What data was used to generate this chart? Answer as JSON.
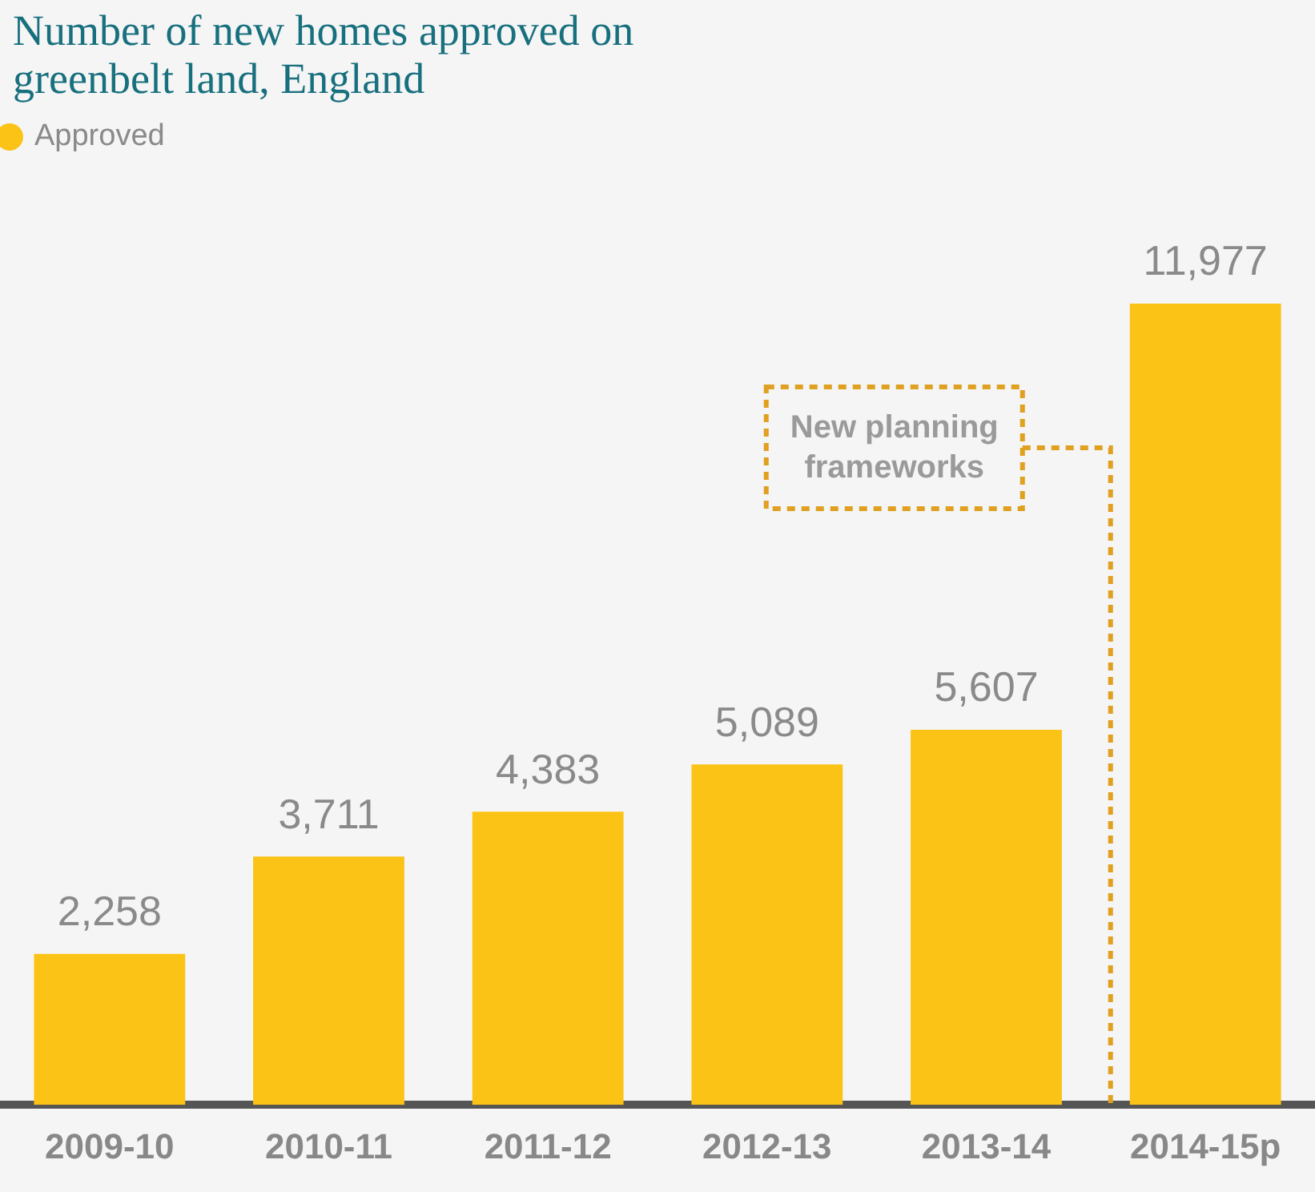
{
  "chart_data": {
    "type": "bar",
    "title": "Number of new homes approved on greenbelt land, England",
    "categories": [
      "2009-10",
      "2010-11",
      "2011-12",
      "2012-13",
      "2013-14",
      "2014-15p"
    ],
    "series": [
      {
        "name": "Approved",
        "color": "#fbc315",
        "values": [
          2258,
          3711,
          4383,
          5089,
          5607,
          11977
        ],
        "value_labels": [
          "2,258",
          "3,711",
          "4,383",
          "5,089",
          "5,607",
          "11,977"
        ]
      }
    ],
    "legend": "top left",
    "grid": false,
    "annotations": [
      "New planning frameworks"
    ]
  }
}
